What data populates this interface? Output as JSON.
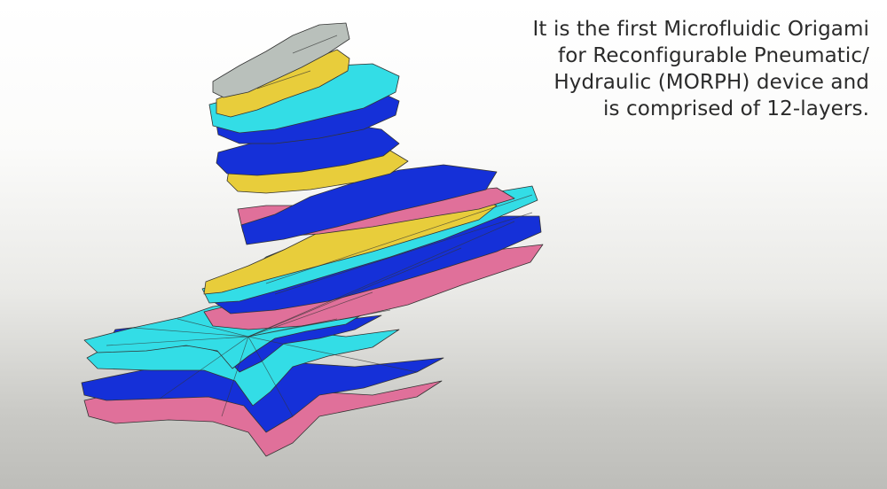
{
  "caption": {
    "lines": [
      "It is the first Microfluidic Origami",
      "for Reconfigurable Pneumatic/",
      "Hydraulic (MORPH) device and",
      "is comprised of 12-layers."
    ]
  },
  "illustration": {
    "subject": "MORPH device exploded 12-layer stack",
    "layer_count": 12,
    "colors": {
      "cyan": "#33dde6",
      "blue": "#1530d8",
      "yellow": "#e8cd3b",
      "pink": "#e0709a",
      "gray": "#b9c0bb",
      "outline": "#333333"
    }
  }
}
